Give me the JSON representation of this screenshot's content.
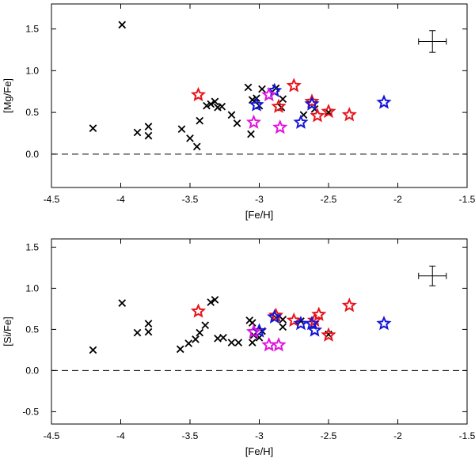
{
  "colors": {
    "red": "#e8141a",
    "blue": "#1414d8",
    "magenta": "#e014e0",
    "black": "#000000"
  },
  "chart_data": [
    {
      "type": "scatter",
      "id": "mg",
      "title": "",
      "xlabel": "[Fe/H]",
      "ylabel": "[Mg/Fe]",
      "xlim": [
        -4.5,
        -1.5
      ],
      "ylim": [
        -0.4,
        1.8
      ],
      "xticks": [
        -4.5,
        -4,
        -3.5,
        -3,
        -2.5,
        -2,
        -1.5
      ],
      "xtick_labels": [
        "-4.5",
        "-4",
        "-3.5",
        "-3",
        "-2.5",
        "-2",
        "-1.5"
      ],
      "yticks": [
        0.0,
        0.5,
        1.0,
        1.5
      ],
      "ytick_labels": [
        "0.0",
        "0.5",
        "1.0",
        "1.5"
      ],
      "reference_line": 0.0,
      "error_bar": {
        "x": -1.75,
        "y": 1.35,
        "xerr": 0.1,
        "yerr": 0.13
      },
      "series": [
        {
          "name": "literature",
          "marker": "x",
          "color": "black",
          "points": [
            [
              -4.2,
              0.31
            ],
            [
              -3.99,
              1.55
            ],
            [
              -3.88,
              0.26
            ],
            [
              -3.8,
              0.33
            ],
            [
              -3.8,
              0.22
            ],
            [
              -3.56,
              0.3
            ],
            [
              -3.5,
              0.19
            ],
            [
              -3.45,
              0.09
            ],
            [
              -3.43,
              0.4
            ],
            [
              -3.38,
              0.58
            ],
            [
              -3.35,
              0.6
            ],
            [
              -3.32,
              0.63
            ],
            [
              -3.3,
              0.56
            ],
            [
              -3.27,
              0.57
            ],
            [
              -3.2,
              0.47
            ],
            [
              -3.16,
              0.37
            ],
            [
              -3.08,
              0.8
            ],
            [
              -3.06,
              0.24
            ],
            [
              -3.05,
              0.65
            ],
            [
              -3.02,
              0.67
            ],
            [
              -3.0,
              0.58
            ],
            [
              -2.98,
              0.78
            ],
            [
              -2.88,
              0.79
            ],
            [
              -2.84,
              0.56
            ],
            [
              -2.83,
              0.66
            ],
            [
              -2.68,
              0.47
            ],
            [
              -2.6,
              0.54
            ],
            [
              -2.5,
              0.5
            ]
          ]
        },
        {
          "name": "red stars",
          "marker": "star",
          "color": "red",
          "points": [
            [
              -3.44,
              0.71
            ],
            [
              -2.86,
              0.57
            ],
            [
              -2.75,
              0.82
            ],
            [
              -2.62,
              0.63
            ],
            [
              -2.58,
              0.46
            ],
            [
              -2.5,
              0.51
            ],
            [
              -2.35,
              0.47
            ]
          ]
        },
        {
          "name": "blue stars",
          "marker": "star",
          "color": "blue",
          "points": [
            [
              -3.02,
              0.59
            ],
            [
              -2.89,
              0.76
            ],
            [
              -2.7,
              0.38
            ],
            [
              -2.62,
              0.6
            ],
            [
              -2.1,
              0.62
            ]
          ]
        },
        {
          "name": "magenta stars",
          "marker": "star",
          "color": "magenta",
          "points": [
            [
              -3.04,
              0.38
            ],
            [
              -2.93,
              0.71
            ],
            [
              -2.85,
              0.32
            ]
          ]
        }
      ]
    },
    {
      "type": "scatter",
      "id": "si",
      "title": "",
      "xlabel": "[Fe/H]",
      "ylabel": "[Si/Fe]",
      "xlim": [
        -4.5,
        -1.5
      ],
      "ylim": [
        -0.65,
        1.6
      ],
      "xticks": [
        -4.5,
        -4,
        -3.5,
        -3,
        -2.5,
        -2,
        -1.5
      ],
      "xtick_labels": [
        "-4.5",
        "-4",
        "-3.5",
        "-3",
        "-2.5",
        "-2",
        "-1.5"
      ],
      "yticks": [
        -0.5,
        0.0,
        0.5,
        1.0,
        1.5
      ],
      "ytick_labels": [
        "-0.5",
        "0.0",
        "0.5",
        "1.0",
        "1.5"
      ],
      "reference_line": 0.0,
      "error_bar": {
        "x": -1.75,
        "y": 1.15,
        "xerr": 0.1,
        "yerr": 0.12
      },
      "series": [
        {
          "name": "literature",
          "marker": "x",
          "color": "black",
          "points": [
            [
              -4.2,
              0.25
            ],
            [
              -3.99,
              0.82
            ],
            [
              -3.88,
              0.46
            ],
            [
              -3.8,
              0.57
            ],
            [
              -3.8,
              0.47
            ],
            [
              -3.57,
              0.26
            ],
            [
              -3.51,
              0.33
            ],
            [
              -3.46,
              0.38
            ],
            [
              -3.43,
              0.46
            ],
            [
              -3.39,
              0.55
            ],
            [
              -3.35,
              0.83
            ],
            [
              -3.32,
              0.86
            ],
            [
              -3.3,
              0.39
            ],
            [
              -3.26,
              0.4
            ],
            [
              -3.2,
              0.34
            ],
            [
              -3.15,
              0.34
            ],
            [
              -3.07,
              0.61
            ],
            [
              -3.05,
              0.58
            ],
            [
              -3.04,
              0.43
            ],
            [
              -3.05,
              0.34
            ],
            [
              -3.0,
              0.4
            ],
            [
              -2.98,
              0.48
            ],
            [
              -2.88,
              0.64
            ],
            [
              -2.83,
              0.62
            ],
            [
              -2.83,
              0.53
            ],
            [
              -2.7,
              0.6
            ],
            [
              -2.5,
              0.44
            ]
          ]
        },
        {
          "name": "red stars",
          "marker": "star",
          "color": "red",
          "points": [
            [
              -3.44,
              0.72
            ],
            [
              -2.88,
              0.67
            ],
            [
              -2.75,
              0.61
            ],
            [
              -2.6,
              0.61
            ],
            [
              -2.57,
              0.68
            ],
            [
              -2.5,
              0.43
            ],
            [
              -2.35,
              0.79
            ]
          ]
        },
        {
          "name": "blue stars",
          "marker": "star",
          "color": "blue",
          "points": [
            [
              -3.0,
              0.48
            ],
            [
              -2.89,
              0.65
            ],
            [
              -2.7,
              0.57
            ],
            [
              -2.62,
              0.57
            ],
            [
              -2.6,
              0.49
            ],
            [
              -2.1,
              0.57
            ]
          ]
        },
        {
          "name": "magenta stars",
          "marker": "star",
          "color": "magenta",
          "points": [
            [
              -3.04,
              0.47
            ],
            [
              -2.93,
              0.31
            ],
            [
              -2.86,
              0.31
            ]
          ]
        }
      ]
    }
  ]
}
